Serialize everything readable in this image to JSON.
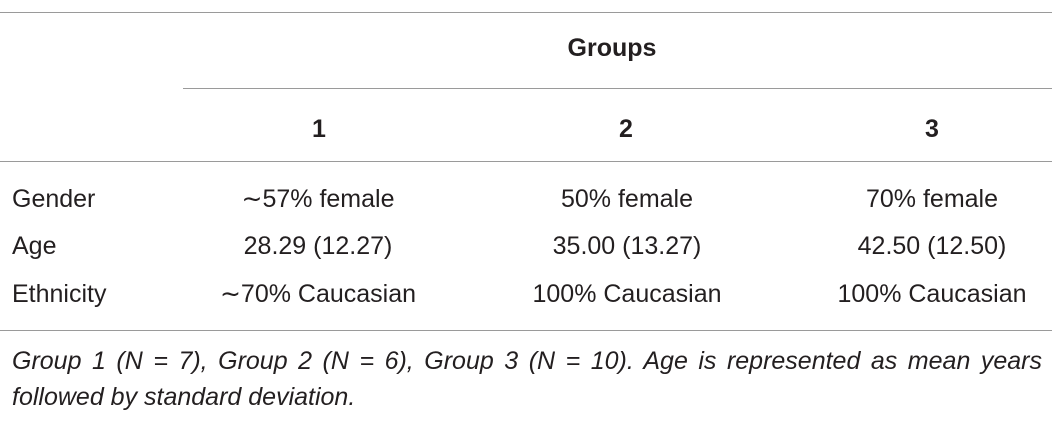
{
  "table": {
    "group_header": "Groups",
    "column_headers": [
      "1",
      "2",
      "3"
    ],
    "rows": [
      {
        "label": "Gender",
        "values": [
          "∼57% female",
          "50% female",
          "70% female"
        ]
      },
      {
        "label": "Age",
        "values": [
          "28.29 (12.27)",
          "35.00 (13.27)",
          "42.50 (12.50)"
        ]
      },
      {
        "label": "Ethnicity",
        "values": [
          "∼70% Caucasian",
          "100% Caucasian",
          "100% Caucasian"
        ]
      }
    ],
    "footnote": "Group 1 (N = 7), Group 2 (N = 6), Group 3 (N = 10). Age is represented as mean years followed by standard deviation."
  }
}
